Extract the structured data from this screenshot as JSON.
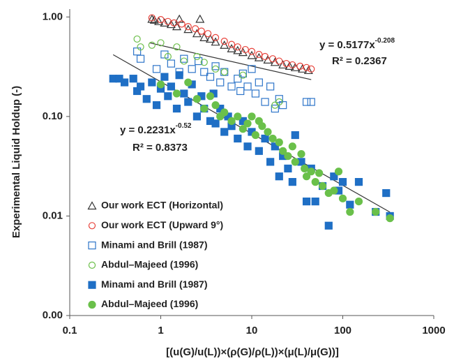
{
  "chart_data": {
    "type": "scatter",
    "ylabel": "Experimental Liquid Holdup (-)",
    "xlabel": "[(u(G)/u(L))×(ρ(G)/ρ(L))×(μ(L)/μ(G))]",
    "xscale": "log",
    "yscale": "log",
    "xlim": [
      0.1,
      1000
    ],
    "ylim": [
      0.001,
      1.2
    ],
    "xticks": [
      0.1,
      1,
      10,
      100,
      1000
    ],
    "yticks": [
      {
        "value": 0.001,
        "label": "0.00"
      },
      0.01,
      {
        "value": 0.1,
        "label": "0.10"
      },
      {
        "value": 1,
        "label": "1.00"
      }
    ],
    "legend": "lower left",
    "series": [
      {
        "name": "Our work ECT (Horizontal)",
        "color": "#333333",
        "marker": "triangle",
        "filled": false,
        "x": [
          0.8,
          0.85,
          0.95,
          1.1,
          1.3,
          1.6,
          1.5,
          2.7,
          2,
          2.5,
          3,
          3.5,
          4,
          5,
          6,
          7,
          8,
          10,
          12,
          15,
          18,
          22,
          26,
          30,
          36,
          42
        ],
        "values": [
          0.95,
          0.93,
          0.9,
          0.87,
          0.84,
          0.95,
          0.8,
          0.95,
          0.75,
          0.68,
          0.62,
          0.6,
          0.56,
          0.52,
          0.48,
          0.46,
          0.44,
          0.41,
          0.39,
          0.37,
          0.35,
          0.33,
          0.32,
          0.31,
          0.3,
          0.29
        ]
      },
      {
        "name": "Our work ECT (Upward 9°)",
        "color": "#e8423a",
        "marker": "circle",
        "filled": false,
        "x": [
          0.8,
          1,
          1.2,
          1.4,
          1.7,
          2,
          2.4,
          2.8,
          3.3,
          4,
          5,
          6,
          7,
          8.5,
          10,
          12,
          14,
          17,
          20,
          24,
          28,
          34,
          40,
          45
        ],
        "values": [
          0.98,
          0.94,
          0.9,
          0.87,
          0.85,
          0.8,
          0.76,
          0.72,
          0.68,
          0.62,
          0.57,
          0.53,
          0.5,
          0.47,
          0.45,
          0.42,
          0.4,
          0.38,
          0.36,
          0.34,
          0.33,
          0.32,
          0.31,
          0.3
        ]
      },
      {
        "name": "Minami and Brill (1987)",
        "color": "#2e75c9",
        "marker": "square",
        "filled": false,
        "x": [
          0.55,
          0.6,
          0.9,
          1.1,
          1.3,
          1.6,
          1.8,
          2.2,
          2.6,
          3,
          3.5,
          4,
          4.5,
          5,
          6,
          7,
          7.5,
          8,
          9,
          10,
          11,
          12,
          14,
          16,
          18,
          20,
          22,
          40,
          45
        ],
        "values": [
          0.45,
          0.38,
          0.3,
          0.42,
          0.34,
          0.28,
          0.38,
          0.3,
          0.36,
          0.28,
          0.25,
          0.32,
          0.22,
          0.28,
          0.2,
          0.24,
          0.18,
          0.27,
          0.2,
          0.3,
          0.17,
          0.22,
          0.14,
          0.2,
          0.12,
          0.15,
          0.13,
          0.14,
          0.14
        ]
      },
      {
        "name": "Abdul–Majeed (1996)",
        "color": "#6cbf4a",
        "marker": "circle",
        "filled": false,
        "x": [
          0.55,
          0.6,
          0.8,
          1,
          1.2,
          1.5,
          1.8,
          2.5,
          3,
          4,
          5,
          8,
          18,
          20
        ],
        "values": [
          0.6,
          0.5,
          0.52,
          0.55,
          0.4,
          0.5,
          0.36,
          0.4,
          0.35,
          0.3,
          0.28,
          0.26,
          0.13,
          0.14
        ]
      },
      {
        "name": "Minami and Brill (1987)",
        "color": "#1f6fc5",
        "marker": "square",
        "filled": true,
        "x": [
          0.3,
          0.35,
          0.4,
          0.5,
          0.55,
          0.6,
          0.7,
          0.8,
          0.9,
          1,
          1.1,
          1.2,
          1.3,
          1.5,
          1.6,
          1.8,
          2,
          2.2,
          2.5,
          2.8,
          3,
          3.5,
          3.8,
          4,
          4.5,
          5,
          5.5,
          6,
          7,
          8,
          9,
          10,
          12,
          14,
          16,
          18,
          20,
          22,
          25,
          28,
          30,
          35,
          40,
          45,
          50,
          60,
          70,
          80,
          90,
          100,
          120,
          150,
          230,
          300,
          330
        ],
        "values": [
          0.24,
          0.24,
          0.22,
          0.24,
          0.18,
          0.2,
          0.15,
          0.22,
          0.13,
          0.19,
          0.25,
          0.16,
          0.2,
          0.12,
          0.26,
          0.17,
          0.14,
          0.21,
          0.1,
          0.16,
          0.12,
          0.09,
          0.17,
          0.085,
          0.12,
          0.07,
          0.1,
          0.08,
          0.06,
          0.09,
          0.05,
          0.07,
          0.045,
          0.06,
          0.035,
          0.05,
          0.025,
          0.04,
          0.03,
          0.022,
          0.065,
          0.035,
          0.014,
          0.03,
          0.014,
          0.02,
          0.008,
          0.025,
          0.018,
          0.022,
          0.013,
          0.022,
          0.011,
          0.017,
          0.01
        ]
      },
      {
        "name": "Abdul–Majeed (1996)",
        "color": "#6ac04a",
        "marker": "circle",
        "filled": true,
        "x": [
          1,
          1.5,
          2,
          2.5,
          3,
          3.5,
          4,
          4.5,
          5,
          6,
          7,
          8,
          9,
          10,
          11,
          12,
          13,
          15,
          17,
          20,
          22,
          25,
          28,
          30,
          35,
          38,
          40,
          45,
          50,
          55,
          60,
          70,
          80,
          90,
          100,
          120,
          150,
          230,
          330
        ],
        "values": [
          0.21,
          0.17,
          0.22,
          0.15,
          0.12,
          0.16,
          0.13,
          0.1,
          0.11,
          0.09,
          0.1,
          0.075,
          0.085,
          0.1,
          0.065,
          0.09,
          0.08,
          0.07,
          0.06,
          0.055,
          0.045,
          0.04,
          0.05,
          0.035,
          0.042,
          0.03,
          0.025,
          0.028,
          0.022,
          0.027,
          0.02,
          0.017,
          0.018,
          0.028,
          0.015,
          0.011,
          0.014,
          0.011,
          0.0095
        ]
      }
    ],
    "trendlines": [
      {
        "coefficient": 0.5177,
        "exponent": -0.208,
        "x_range": [
          0.75,
          45
        ]
      },
      {
        "coefficient": 0.2231,
        "exponent": -0.52,
        "x_range": [
          0.3,
          330
        ]
      }
    ],
    "annotations": [
      {
        "text": "y = 0.5177x",
        "superscript": "-0.208"
      },
      {
        "text": "R² = 0.2367"
      },
      {
        "text": "y = 0.2231x",
        "superscript": "-0.52"
      },
      {
        "text": "R² = 0.8373"
      }
    ]
  }
}
